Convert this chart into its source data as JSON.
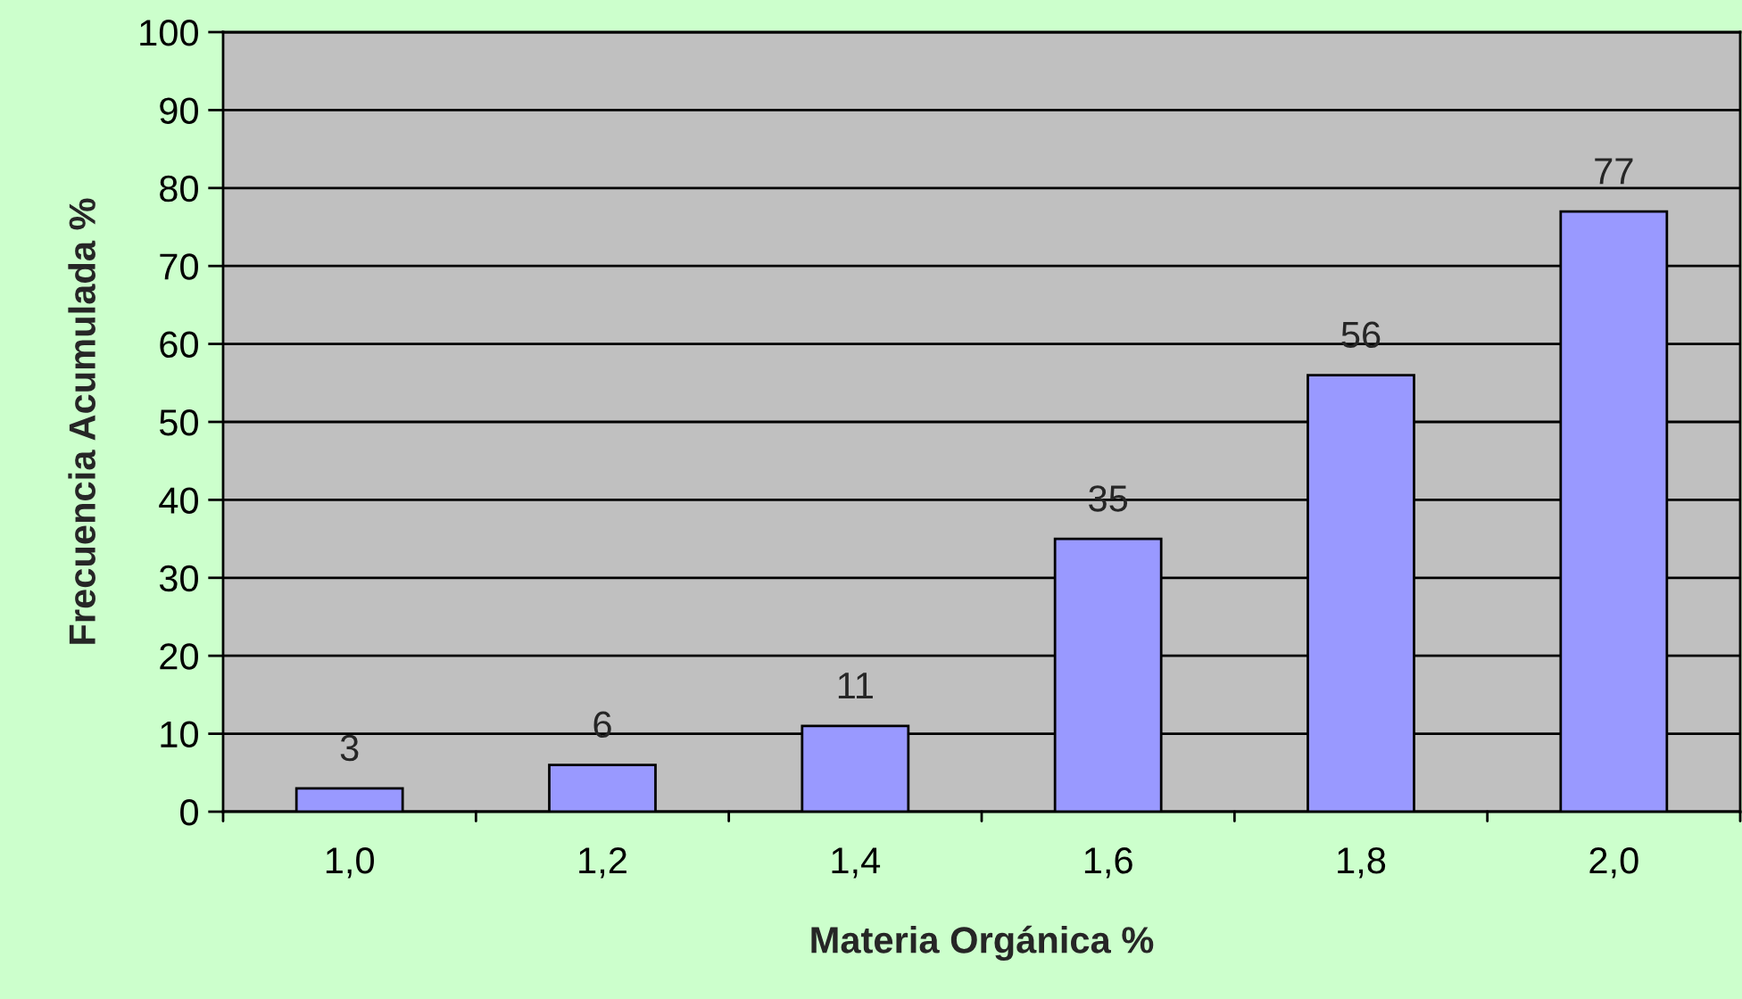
{
  "chart_data": {
    "type": "bar",
    "xlabel": "Materia Orgánica %",
    "ylabel": "Frecuencia Acumulada %",
    "categories": [
      "1,0",
      "1,2",
      "1,4",
      "1,6",
      "1,8",
      "2,0"
    ],
    "values": [
      3,
      6,
      11,
      35,
      56,
      77
    ],
    "color": "#9999ff",
    "ylim": [
      0,
      100
    ],
    "yticks": [
      0,
      10,
      20,
      30,
      40,
      50,
      60,
      70,
      80,
      90,
      100
    ],
    "grid": "y",
    "data_labels": true,
    "legend": false
  }
}
